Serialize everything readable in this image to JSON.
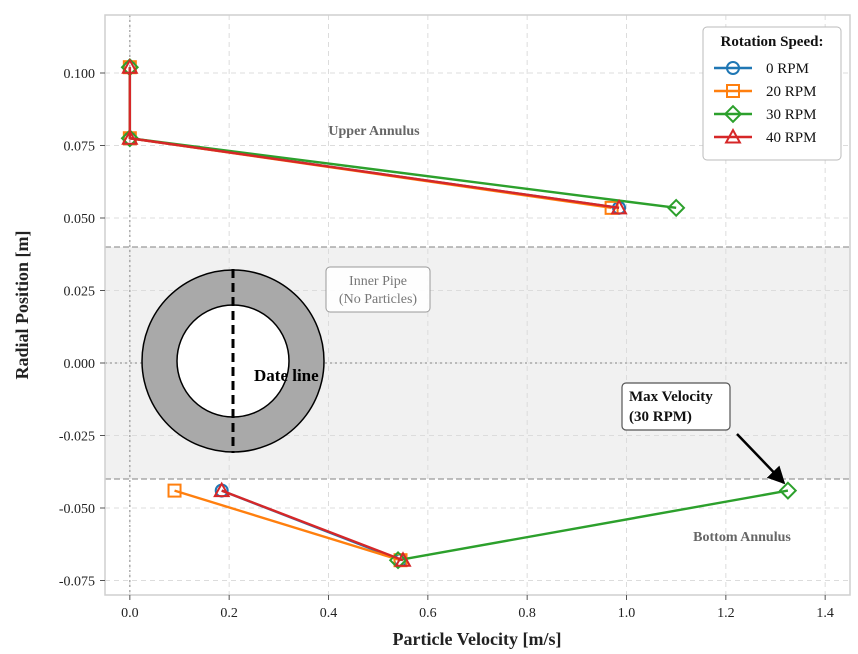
{
  "chart_data": {
    "type": "line",
    "xlabel": "Particle Velocity [m/s]",
    "ylabel": "Radial Position [m]",
    "xlim": [
      -0.05,
      1.45
    ],
    "ylim": [
      -0.08,
      0.12
    ],
    "xticks": [
      0.0,
      0.2,
      0.4,
      0.6,
      0.8,
      1.0,
      1.2,
      1.4
    ],
    "xtick_labels": [
      "0.0",
      "0.2",
      "0.4",
      "0.6",
      "0.8",
      "1.0",
      "1.2",
      "1.4"
    ],
    "yticks": [
      0.1,
      0.075,
      0.05,
      0.025,
      0.0,
      -0.025,
      -0.05,
      -0.075
    ],
    "ytick_labels": [
      "0.100",
      "0.075",
      "0.050",
      "0.025",
      "0.000",
      "-0.025",
      "-0.050",
      "-0.075"
    ],
    "grid": true,
    "legend": {
      "title": "Rotation Speed:",
      "placement": "top-right"
    },
    "inner_pipe_band": [
      -0.04,
      0.04
    ],
    "series": [
      {
        "name": "0 RPM",
        "color": "#1f77b4",
        "marker": "circle",
        "upper": [
          [
            0.0,
            0.102
          ],
          [
            0.0,
            0.0775
          ],
          [
            0.985,
            0.0535
          ]
        ],
        "lower": [
          [
            0.185,
            -0.044
          ],
          [
            0.545,
            -0.068
          ]
        ]
      },
      {
        "name": "20 RPM",
        "color": "#ff7f0e",
        "marker": "square",
        "upper": [
          [
            0.0,
            0.102
          ],
          [
            0.0,
            0.0775
          ],
          [
            0.97,
            0.0535
          ]
        ],
        "lower": [
          [
            0.09,
            -0.044
          ],
          [
            0.545,
            -0.068
          ]
        ]
      },
      {
        "name": "30 RPM",
        "color": "#2ca02c",
        "marker": "diamond",
        "upper": [
          [
            0.0,
            0.102
          ],
          [
            0.0,
            0.0775
          ],
          [
            1.1,
            0.0535
          ]
        ],
        "lower": [
          [
            1.325,
            -0.044
          ],
          [
            0.54,
            -0.068
          ]
        ]
      },
      {
        "name": "40 RPM",
        "color": "#d62728",
        "marker": "triangle",
        "upper": [
          [
            0.0,
            0.102
          ],
          [
            0.0,
            0.0775
          ],
          [
            0.985,
            0.0535
          ]
        ],
        "lower": [
          [
            0.185,
            -0.044
          ],
          [
            0.55,
            -0.068
          ]
        ]
      }
    ],
    "annotations": {
      "upper_annulus": "Upper Annulus",
      "inner_pipe_line1": "Inner Pipe",
      "inner_pipe_line2": "(No Particles)",
      "bottom_annulus": "Bottom Annulus",
      "max_velocity_line1": "Max Velocity",
      "max_velocity_line2": "(30 RPM)",
      "date_line": "Date line"
    }
  }
}
